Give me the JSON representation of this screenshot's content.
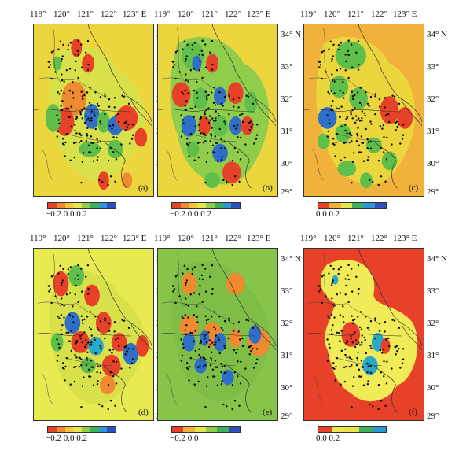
{
  "lon_labels": [
    "119°",
    "120°",
    "121°",
    "122°",
    "123° E"
  ],
  "lat_labels": [
    "34° N",
    "33°",
    "32°",
    "31°",
    "30°",
    "29°"
  ],
  "panels": [
    {
      "label": "(a)",
      "bg": "#ecd63e",
      "ticks": "−0.2 0.0 0.2",
      "colors": [
        "#e8412a",
        "#f08a30",
        "#f5c43a",
        "#e6e64a",
        "#8fcd4a",
        "#3fb05a",
        "#2a9ad6",
        "#2f4fb8"
      ]
    },
    {
      "label": "(b)",
      "bg": "#ecd63e",
      "ticks": "−0.2 0.0 0.2",
      "colors": [
        "#e8412a",
        "#f08a30",
        "#f5c43a",
        "#e6e64a",
        "#8fcd4a",
        "#3fb05a",
        "#2a9ad6",
        "#2f4fb8"
      ]
    },
    {
      "label": "(c)",
      "bg": "#f0b23a",
      "ticks": "0.0    0.2",
      "colors": [
        "#e8412a",
        "#f0b23a",
        "#e6e64a",
        "#3fb05a",
        "#2a9ad6",
        "#2f4fb8"
      ]
    },
    {
      "label": "(d)",
      "bg": "#e8ea52",
      "ticks": "−0.2 0.0 0.2",
      "colors": [
        "#e8412a",
        "#f08a30",
        "#f5c43a",
        "#e6e64a",
        "#8fcd4a",
        "#3fb05a",
        "#2a9ad6",
        "#2f4fb8"
      ]
    },
    {
      "label": "(e)",
      "bg": "#86c44a",
      "ticks": "−0.2    0.0",
      "colors": [
        "#e8412a",
        "#f0b23a",
        "#e6e64a",
        "#8fcd4a",
        "#3fb05a",
        "#2f4fb8"
      ]
    },
    {
      "label": "(f)",
      "bg": "#e8412a",
      "ticks": "0.0    0.2",
      "colors": [
        "#e8412a",
        "#f0e84a",
        "#e6e64a",
        "#3fb05a",
        "#2a9ad6"
      ]
    }
  ],
  "colors": {
    "red": "#e8412a",
    "orange": "#f08a30",
    "yellow": "#ecd63e",
    "green": "#5fbf4a",
    "blue": "#2f6fc8",
    "cyan": "#2aa8c8",
    "paleyellow": "#f0ec58"
  }
}
